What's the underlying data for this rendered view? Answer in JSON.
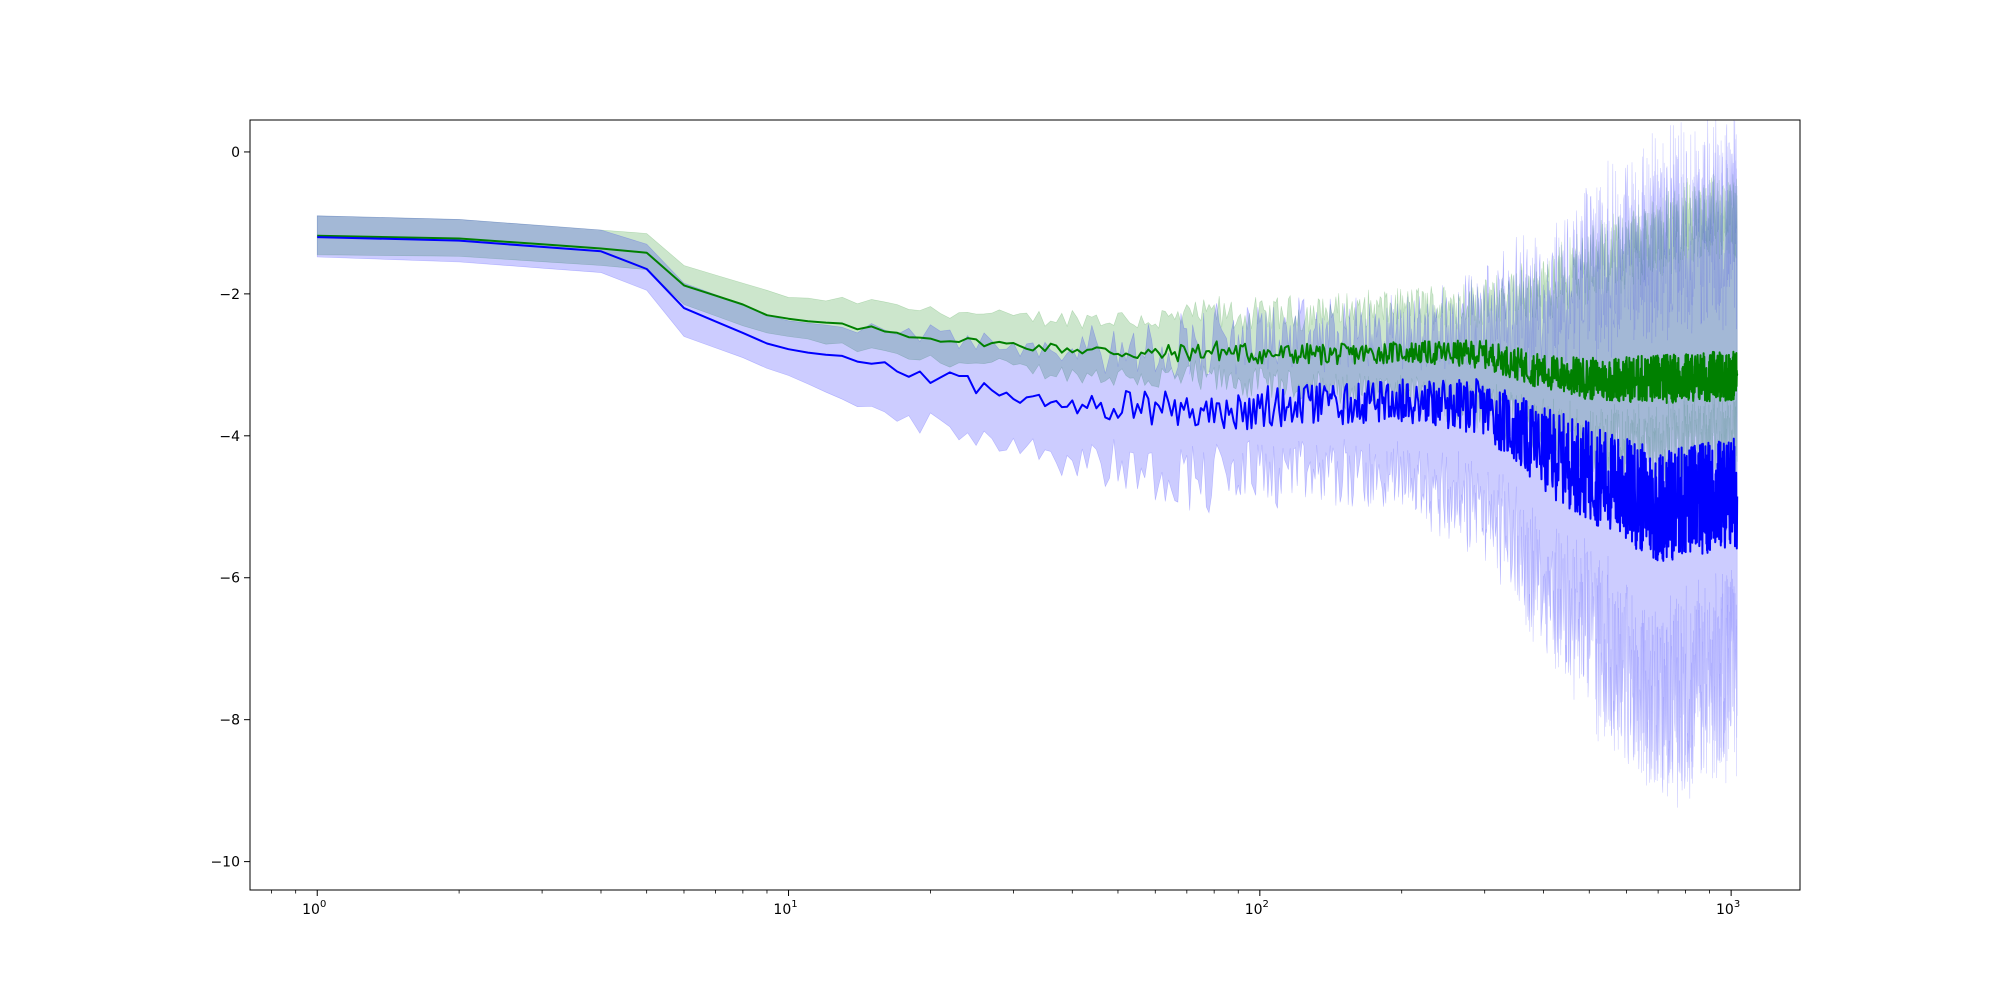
{
  "chart_data": {
    "type": "line",
    "title": "",
    "xlabel": "",
    "ylabel": "",
    "x_scale": "log",
    "xlim": [
      0.72,
      1400
    ],
    "ylim": [
      -10.4,
      0.45
    ],
    "grid": false,
    "x_major_ticks": [
      {
        "value": 1,
        "base": "10",
        "exp": "0"
      },
      {
        "value": 10,
        "base": "10",
        "exp": "1"
      },
      {
        "value": 100,
        "base": "10",
        "exp": "2"
      },
      {
        "value": 1000,
        "base": "10",
        "exp": "3"
      }
    ],
    "y_ticks": [
      {
        "value": 0,
        "label": "0"
      },
      {
        "value": -2,
        "label": "−2"
      },
      {
        "value": -4,
        "label": "−4"
      },
      {
        "value": -6,
        "label": "−6"
      },
      {
        "value": -8,
        "label": "−8"
      },
      {
        "value": -10,
        "label": "−10"
      }
    ],
    "series": [
      {
        "color": "#008000",
        "band_color": "#008000",
        "band_opacity": 0.2,
        "anchors": {
          "x": [
            1,
            2,
            4,
            5,
            6,
            8,
            9,
            10,
            15,
            20,
            30,
            40,
            60,
            80,
            100,
            150,
            200,
            300,
            400,
            500,
            700,
            1000
          ],
          "mean": [
            -1.18,
            -1.22,
            -1.36,
            -1.42,
            -1.88,
            -2.15,
            -2.3,
            -2.35,
            -2.5,
            -2.62,
            -2.72,
            -2.78,
            -2.85,
            -2.8,
            -2.85,
            -2.85,
            -2.82,
            -2.85,
            -3.1,
            -3.2,
            -3.2,
            -3.15
          ],
          "lower": [
            -1.45,
            -1.47,
            -1.6,
            -1.66,
            -2.15,
            -2.45,
            -2.55,
            -2.6,
            -2.8,
            -2.92,
            -3.0,
            -3.1,
            -3.15,
            -3.15,
            -3.2,
            -3.3,
            -3.35,
            -3.5,
            -3.8,
            -4.0,
            -4.0,
            -3.9
          ],
          "upper": [
            -0.9,
            -0.95,
            -1.1,
            -1.15,
            -1.6,
            -1.85,
            -1.95,
            -2.05,
            -2.15,
            -2.25,
            -2.35,
            -2.38,
            -2.42,
            -2.35,
            -2.38,
            -2.3,
            -2.25,
            -2.2,
            -2.0,
            -1.7,
            -1.3,
            -1.0
          ]
        },
        "noise": [
          0,
          0,
          0,
          0,
          0,
          0,
          0,
          0,
          0.05,
          0.05,
          0.06,
          0.08,
          0.12,
          0.15,
          0.15,
          0.15,
          0.15,
          0.2,
          0.25,
          0.3,
          0.35,
          0.35
        ]
      },
      {
        "color": "#0000ff",
        "band_color": "#0000ff",
        "band_opacity": 0.2,
        "anchors": {
          "x": [
            1,
            2,
            4,
            5,
            6,
            8,
            9,
            10,
            15,
            20,
            30,
            40,
            60,
            80,
            100,
            150,
            200,
            300,
            400,
            500,
            700,
            1000
          ],
          "mean": [
            -1.2,
            -1.25,
            -1.4,
            -1.65,
            -2.2,
            -2.55,
            -2.7,
            -2.78,
            -3.0,
            -3.15,
            -3.4,
            -3.5,
            -3.6,
            -3.7,
            -3.6,
            -3.55,
            -3.5,
            -3.6,
            -4.2,
            -4.5,
            -5.0,
            -4.8
          ],
          "lower": [
            -1.48,
            -1.55,
            -1.7,
            -1.95,
            -2.6,
            -2.9,
            -3.05,
            -3.15,
            -3.55,
            -3.8,
            -4.05,
            -4.2,
            -4.4,
            -4.5,
            -4.4,
            -4.4,
            -4.5,
            -4.9,
            -5.8,
            -6.5,
            -7.5,
            -7.0
          ],
          "upper": [
            -0.9,
            -0.95,
            -1.1,
            -1.3,
            -1.85,
            -2.15,
            -2.3,
            -2.38,
            -2.5,
            -2.6,
            -2.75,
            -2.82,
            -2.9,
            -2.8,
            -2.75,
            -2.7,
            -2.7,
            -2.5,
            -2.3,
            -2.0,
            -1.5,
            -1.3
          ]
        },
        "noise": [
          0,
          0,
          0,
          0,
          0,
          0,
          0,
          0,
          0.08,
          0.12,
          0.15,
          0.2,
          0.25,
          0.3,
          0.3,
          0.3,
          0.3,
          0.4,
          0.6,
          0.7,
          0.8,
          0.8
        ]
      }
    ]
  }
}
